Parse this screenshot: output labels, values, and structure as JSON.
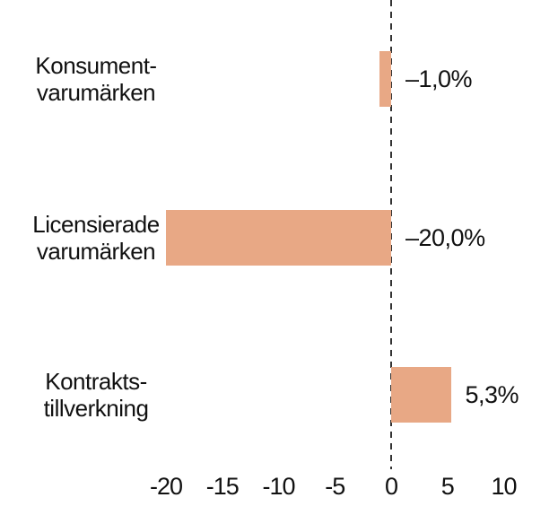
{
  "chart_data": {
    "type": "bar",
    "orientation": "horizontal",
    "title": "",
    "categories": [
      "Konsument-\nvarumärken",
      "Licensierade\nvarumärken",
      "Kontrakts-\ntillverkning"
    ],
    "values": [
      -1.0,
      -20.0,
      5.3
    ],
    "value_labels": [
      "–1,0%",
      "–20,0%",
      "5,3%"
    ],
    "x_tick_labels": [
      "-20",
      "-15",
      "-10",
      "-5",
      "0",
      "5",
      "10"
    ],
    "x_tick_values": [
      -20,
      -15,
      -10,
      -5,
      0,
      5,
      10
    ],
    "xlim": [
      -22,
      12.5
    ],
    "grid": "off",
    "legend": "none",
    "zero_line_style": "dashed",
    "colors": {
      "bar": "#e8a885",
      "text": "#1a1a1a",
      "zero_line": "#333333",
      "background": "#ffffff"
    }
  }
}
